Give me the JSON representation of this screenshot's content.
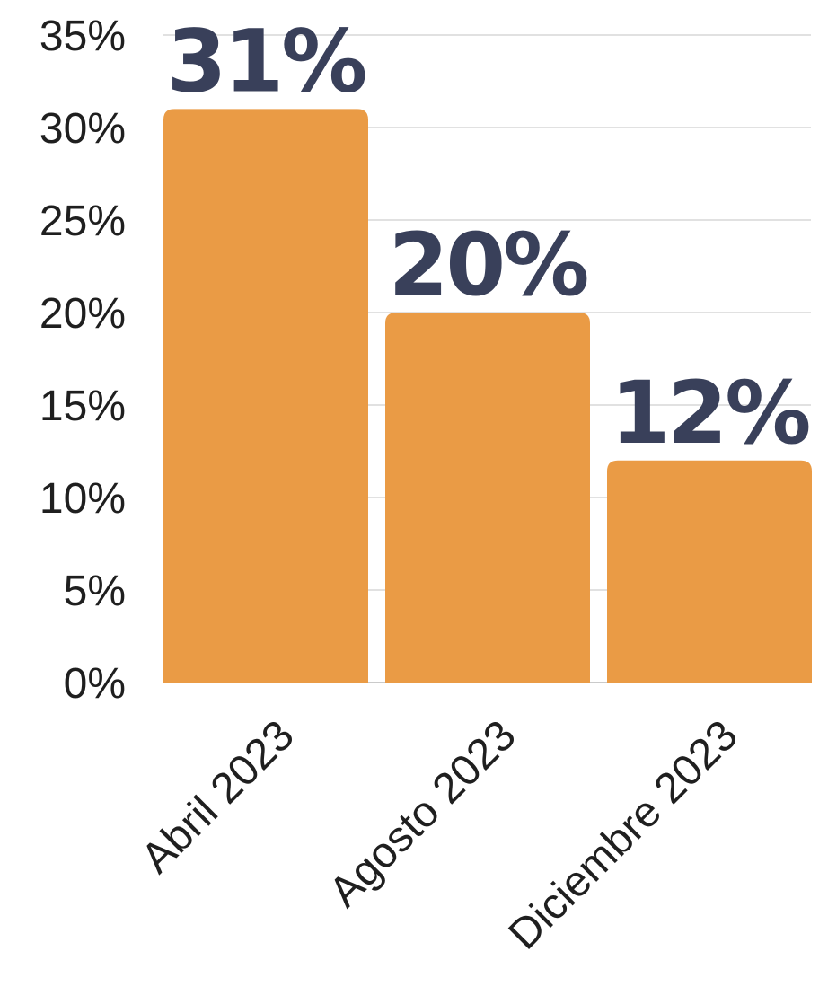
{
  "chart_data": {
    "type": "bar",
    "categories": [
      "Abril 2023",
      "Agosto 2023",
      "Diciembre 2023"
    ],
    "values": [
      31,
      20,
      12
    ],
    "data_labels": [
      "31%",
      "20%",
      "12%"
    ],
    "y_ticks": [
      0,
      5,
      10,
      15,
      20,
      25,
      30,
      35
    ],
    "y_tick_labels": [
      "0%",
      "5%",
      "10%",
      "15%",
      "20%",
      "25%",
      "30%",
      "35%"
    ],
    "ylim": [
      0,
      35
    ],
    "title": "",
    "xlabel": "",
    "ylabel": "",
    "grid": true,
    "legend": "none",
    "colors": {
      "bar": "#EA9B45",
      "data_label": "#39405A",
      "grid": "#CFCFCF",
      "axis_text": "#1F1F1F"
    }
  }
}
